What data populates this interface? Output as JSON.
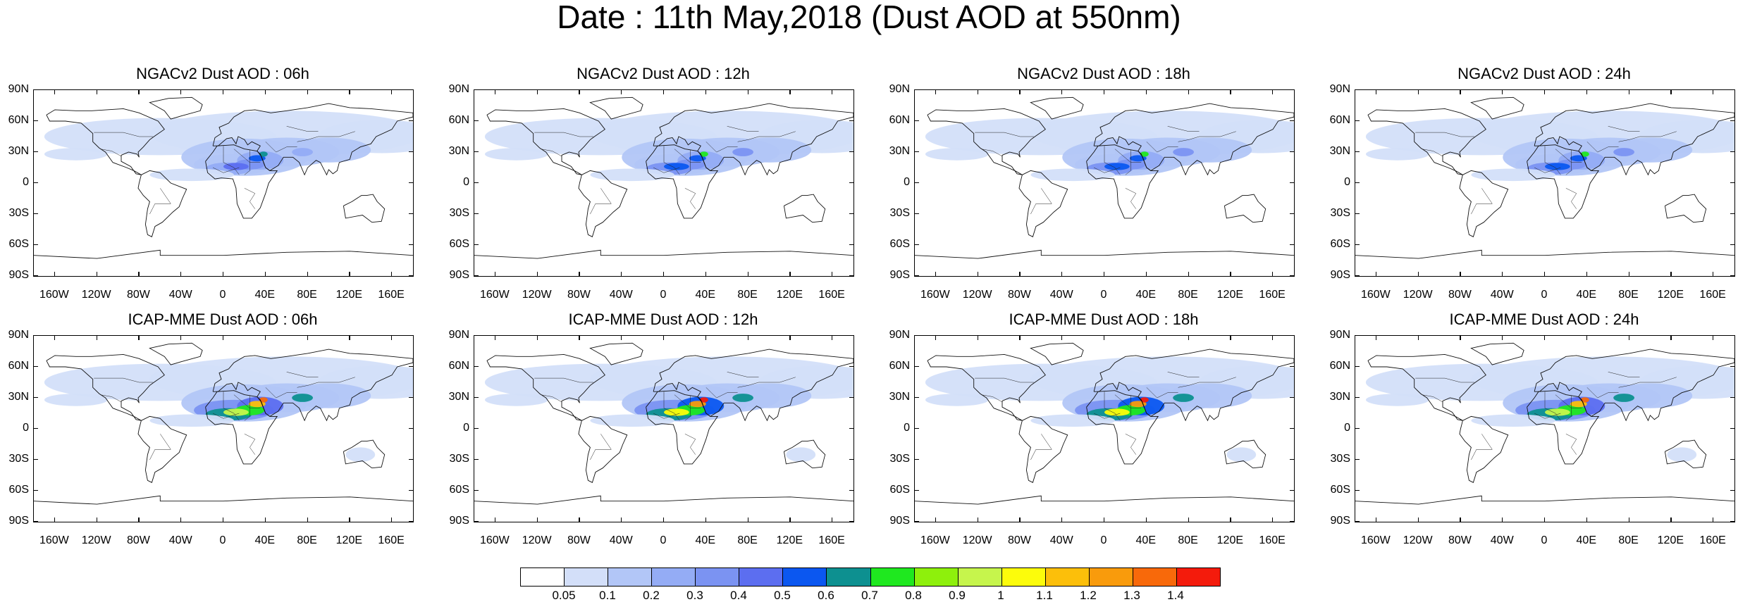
{
  "title": "Date : 11th May,2018 (Dust AOD at 550nm)",
  "panels": [
    {
      "title": "NGACv2 Dust AOD : 06h",
      "intensity": 0.65
    },
    {
      "title": "NGACv2 Dust AOD : 12h",
      "intensity": 0.7
    },
    {
      "title": "NGACv2 Dust AOD : 18h",
      "intensity": 0.7
    },
    {
      "title": "NGACv2 Dust AOD : 24h",
      "intensity": 0.7
    },
    {
      "title": "ICAP-MME Dust AOD : 06h",
      "intensity": 1.3
    },
    {
      "title": "ICAP-MME Dust AOD : 12h",
      "intensity": 1.4
    },
    {
      "title": "ICAP-MME Dust AOD : 18h",
      "intensity": 1.4
    },
    {
      "title": "ICAP-MME Dust AOD : 24h",
      "intensity": 1.3
    }
  ],
  "lat_labels": [
    "90N",
    "60N",
    "30N",
    "0",
    "30S",
    "60S",
    "90S"
  ],
  "lon_labels": [
    "160W",
    "120W",
    "80W",
    "40W",
    "0",
    "40E",
    "80E",
    "120E",
    "160E"
  ],
  "colorbar": {
    "labels": [
      "0.05",
      "0.1",
      "0.2",
      "0.3",
      "0.4",
      "0.5",
      "0.6",
      "0.7",
      "0.8",
      "0.9",
      "1",
      "1.1",
      "1.2",
      "1.3",
      "1.4"
    ],
    "colors": [
      "#ffffff",
      "#d3dff9",
      "#b2c6f7",
      "#94acf5",
      "#7b93f2",
      "#5c6ef0",
      "#0b57f0",
      "#0d9090",
      "#1fe81f",
      "#8ef00c",
      "#c6f54c",
      "#fcfc0b",
      "#fcbf0a",
      "#f99b0c",
      "#f8690a",
      "#f41b0c"
    ]
  }
}
